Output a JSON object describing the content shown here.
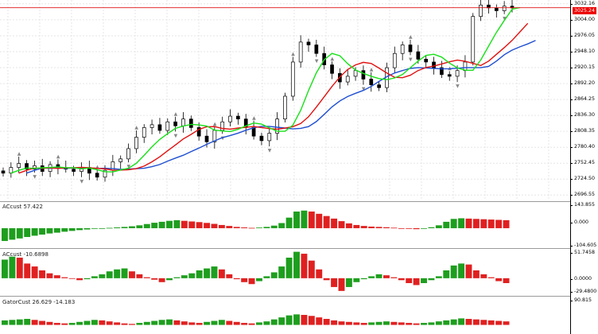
{
  "panes": {
    "main": {
      "price_labels": [
        "3032.16",
        "3004.00",
        "2976.05",
        "2948.10",
        "2920.15",
        "2892.20",
        "2864.25",
        "2836.30",
        "2808.35",
        "2780.40",
        "2752.45",
        "2724.50",
        "2696.55"
      ],
      "current_price": "3025.24",
      "colors": {
        "jaw": "#1f4fd1",
        "teeth": "#e01010",
        "lips": "#18e018",
        "price_line": "#e01010"
      }
    },
    "ac": {
      "title": "ACcust 57.422",
      "labels": [
        "143.855",
        "0.000",
        "-104.605"
      ]
    },
    "ao": {
      "title": "ACcust -10.6898",
      "labels": [
        "51.7458",
        "0.0000",
        "-29.4800"
      ]
    },
    "gator": {
      "title": "GatorCust 26.629 -14.183",
      "labels": [
        "90.815"
      ]
    }
  },
  "chart_data": [
    {
      "type": "candlestick",
      "description_series": [
        "price",
        "Alligator jaw",
        "Alligator teeth",
        "Alligator lips"
      ],
      "ylim": [
        2690,
        3036
      ],
      "close_path": [
        2735,
        2745,
        2752,
        2742,
        2748,
        2738,
        2750,
        2745,
        2742,
        2738,
        2745,
        2735,
        2728,
        2740,
        2755,
        2760,
        2778,
        2798,
        2815,
        2820,
        2810,
        2825,
        2818,
        2830,
        2815,
        2800,
        2790,
        2810,
        2825,
        2835,
        2830,
        2815,
        2800,
        2792,
        2805,
        2830,
        2870,
        2930,
        2965,
        2960,
        2945,
        2925,
        2910,
        2895,
        2905,
        2915,
        2900,
        2890,
        2885,
        2920,
        2945,
        2960,
        2948,
        2935,
        2930,
        2920,
        2908,
        2905,
        2915,
        2930,
        3010,
        3030,
        3025,
        3020,
        3028,
        3025
      ],
      "current_price": 3025.24
    },
    {
      "type": "bar",
      "series_name": "ACcust",
      "ylim": [
        -104.605,
        143.855
      ],
      "values": [
        -80,
        -72,
        -64,
        -55,
        -47,
        -40,
        -33,
        -28,
        -22,
        -17,
        -12,
        -8,
        -4,
        -1,
        2,
        5,
        8,
        12,
        18,
        26,
        34,
        40,
        46,
        50,
        46,
        42,
        38,
        33,
        27,
        20,
        14,
        8,
        5,
        2,
        4,
        8,
        16,
        32,
        66,
        104,
        110,
        104,
        90,
        76,
        60,
        44,
        30,
        20,
        14,
        10,
        8,
        6,
        3,
        0,
        -4,
        -6,
        -2,
        6,
        18,
        40,
        58,
        62,
        60,
        58,
        56,
        54,
        52,
        50
      ]
    },
    {
      "type": "bar",
      "series_name": "ACcust",
      "ylim": [
        -29.48,
        51.7458
      ],
      "values": [
        38,
        44,
        42,
        30,
        24,
        16,
        10,
        6,
        2,
        -1,
        -4,
        -2,
        4,
        8,
        14,
        18,
        20,
        14,
        8,
        2,
        -3,
        -8,
        -4,
        2,
        6,
        10,
        16,
        20,
        24,
        18,
        8,
        -2,
        -8,
        -12,
        -6,
        4,
        12,
        24,
        42,
        54,
        50,
        36,
        18,
        -4,
        -18,
        -26,
        -18,
        -8,
        -2,
        4,
        8,
        6,
        2,
        -4,
        -10,
        -14,
        -10,
        -4,
        4,
        16,
        26,
        30,
        28,
        16,
        8,
        2,
        -6,
        -10
      ]
    },
    {
      "type": "bar",
      "series_name": "GatorCust",
      "ylim": [
        -30,
        90.815
      ],
      "values": [
        18,
        20,
        22,
        24,
        20,
        16,
        12,
        8,
        6,
        8,
        12,
        16,
        20,
        18,
        14,
        10,
        6,
        4,
        8,
        12,
        16,
        20,
        22,
        18,
        14,
        10,
        8,
        12,
        16,
        20,
        16,
        12,
        8,
        6,
        10,
        14,
        22,
        30,
        38,
        42,
        40,
        36,
        30,
        24,
        18,
        14,
        12,
        10,
        8,
        10,
        12,
        14,
        12,
        10,
        8,
        6,
        8,
        10,
        14,
        18,
        22,
        26,
        24,
        22,
        20,
        18,
        16,
        14
      ]
    }
  ]
}
